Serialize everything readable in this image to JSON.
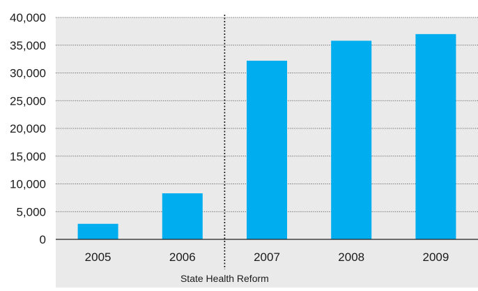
{
  "chart_data": {
    "type": "bar",
    "title": "",
    "xlabel": "",
    "ylabel": "",
    "categories": [
      "2005",
      "2006",
      "2007",
      "2008",
      "2009"
    ],
    "values": [
      2800,
      8300,
      32200,
      35800,
      37000
    ],
    "ylim": [
      0,
      40000
    ],
    "yticks": [
      0,
      5000,
      10000,
      15000,
      20000,
      25000,
      30000,
      35000,
      40000
    ],
    "ytick_labels": [
      "0",
      "5,000",
      "10,000",
      "15,000",
      "20,000",
      "25,000",
      "30,000",
      "35,000",
      "40,000"
    ],
    "grid": "horizontal dotted",
    "bar_color": "#00AEEF",
    "plot_background": "#EAEAEA",
    "annotation": {
      "label": "State Health Reform",
      "between_categories": [
        "2006",
        "2007"
      ],
      "style": "dotted vertical line"
    }
  }
}
